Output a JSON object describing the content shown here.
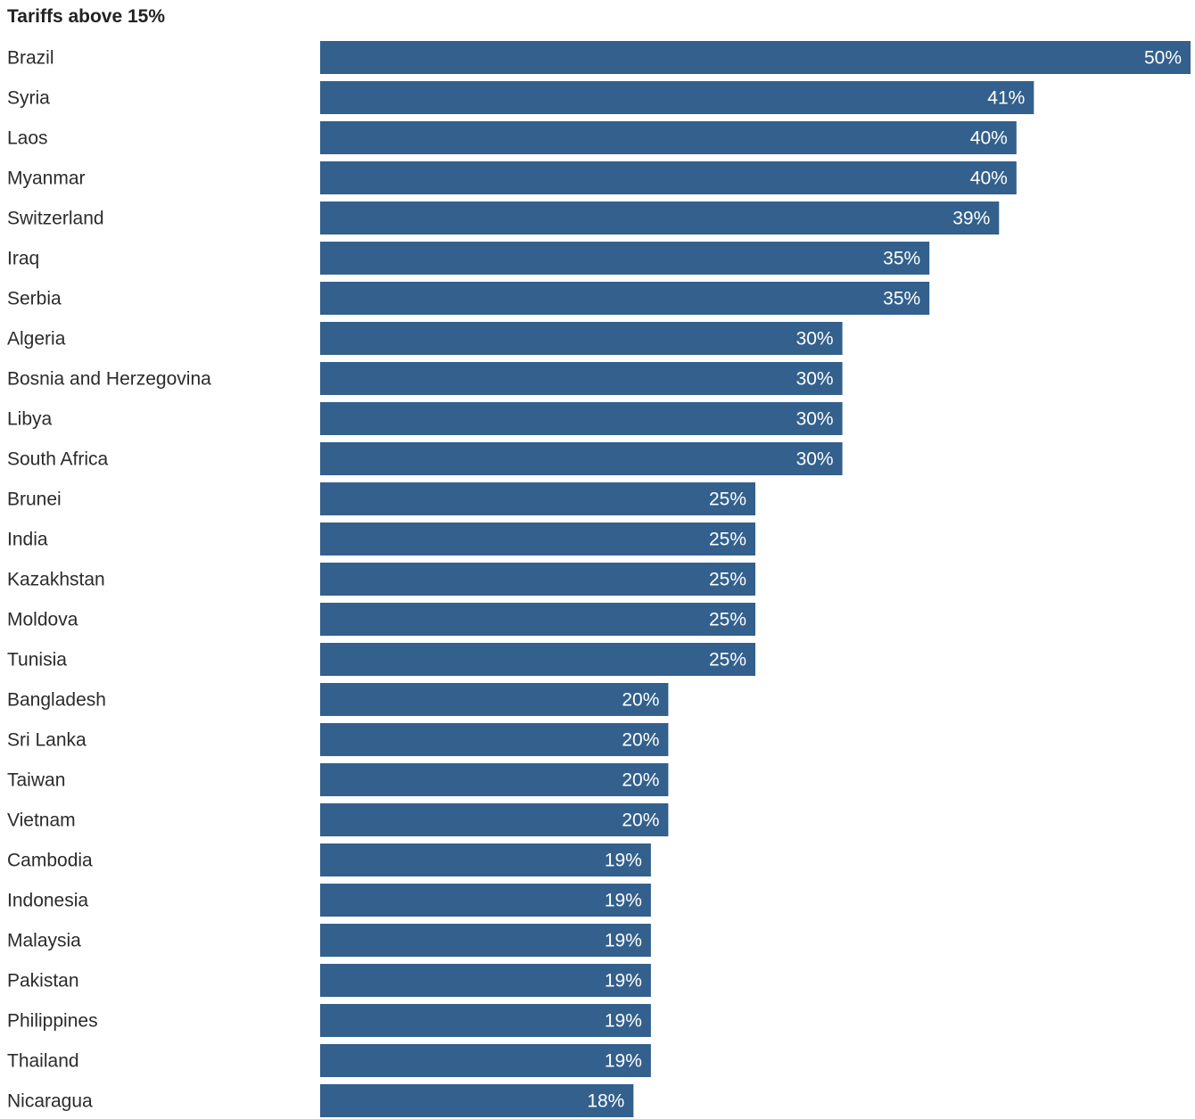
{
  "chart_data": {
    "type": "bar",
    "orientation": "horizontal",
    "title": "Tariffs above 15%",
    "categories": [
      "Brazil",
      "Syria",
      "Laos",
      "Myanmar",
      "Switzerland",
      "Iraq",
      "Serbia",
      "Algeria",
      "Bosnia and Herzegovina",
      "Libya",
      "South Africa",
      "Brunei",
      "India",
      "Kazakhstan",
      "Moldova",
      "Tunisia",
      "Bangladesh",
      "Sri Lanka",
      "Taiwan",
      "Vietnam",
      "Cambodia",
      "Indonesia",
      "Malaysia",
      "Pakistan",
      "Philippines",
      "Thailand",
      "Nicaragua"
    ],
    "values": [
      50,
      41,
      40,
      40,
      39,
      35,
      35,
      30,
      30,
      30,
      30,
      25,
      25,
      25,
      25,
      25,
      20,
      20,
      20,
      20,
      19,
      19,
      19,
      19,
      19,
      19,
      18
    ],
    "value_labels": [
      "50%",
      "41%",
      "40%",
      "40%",
      "39%",
      "35%",
      "35%",
      "30%",
      "30%",
      "30%",
      "30%",
      "25%",
      "25%",
      "25%",
      "25%",
      "25%",
      "20%",
      "20%",
      "20%",
      "20%",
      "19%",
      "19%",
      "19%",
      "19%",
      "19%",
      "19%",
      "18%"
    ],
    "xlim": [
      0,
      50
    ],
    "grid": false,
    "legend": "none",
    "bar_color": "#33608c",
    "value_label_color": "#ffffff"
  }
}
